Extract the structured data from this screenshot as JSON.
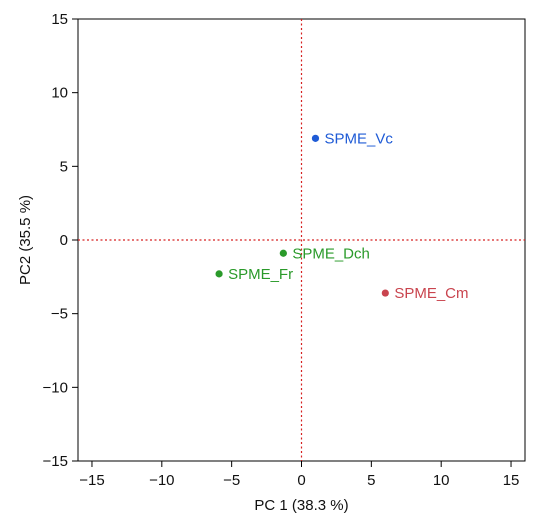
{
  "chart_data": {
    "type": "scatter",
    "title": "",
    "xlabel": "PC 1  (38.3 %)",
    "ylabel": "PC2 (35.5 %)",
    "xlim": [
      -16,
      16
    ],
    "ylim": [
      -15,
      15
    ],
    "xticks": [
      -15,
      -10,
      -5,
      0,
      5,
      10,
      15
    ],
    "yticks": [
      -15,
      -10,
      -5,
      0,
      5,
      10,
      15
    ],
    "grid": false,
    "reference_lines": {
      "x": 0,
      "y": 0,
      "color": "#d62020",
      "style": "dotted"
    },
    "points": [
      {
        "label": "SPME_Vc",
        "x": 1.0,
        "y": 6.9,
        "color": "#1f5bd6"
      },
      {
        "label": "SPME_Dch",
        "x": -1.3,
        "y": -0.9,
        "color": "#2a9a2a"
      },
      {
        "label": "SPME_Fr",
        "x": -5.9,
        "y": -2.3,
        "color": "#2a9a2a"
      },
      {
        "label": "SPME_Cm",
        "x": 6.0,
        "y": -3.6,
        "color": "#c9444e"
      }
    ]
  }
}
